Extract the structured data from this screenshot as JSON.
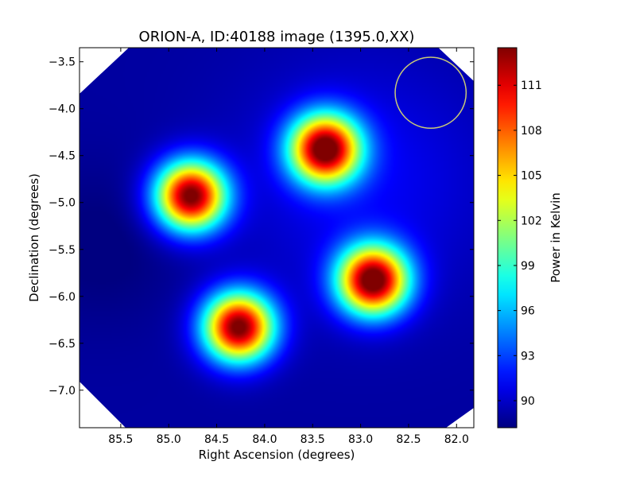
{
  "chart_data": {
    "type": "heatmap",
    "title": "ORION-A, ID:40188 image (1395.0,XX)",
    "xlabel": "Right Ascension (degrees)",
    "ylabel": "Declination (degrees)",
    "colorbar_label": "Power in Kelvin",
    "x_axis_reversed": true,
    "xlim": [
      85.93,
      81.82
    ],
    "ylim": [
      -7.4,
      -3.35
    ],
    "x_ticks": [
      85.5,
      85.0,
      84.5,
      84.0,
      83.5,
      83.0,
      82.5,
      82.0
    ],
    "x_tick_labels": [
      "85.5",
      "85.0",
      "84.5",
      "84.0",
      "83.5",
      "83.0",
      "82.5",
      "82.0"
    ],
    "y_ticks": [
      -3.5,
      -4.0,
      -4.5,
      -5.0,
      -5.5,
      -6.0,
      -6.5,
      -7.0
    ],
    "y_tick_labels": [
      "−3.5",
      "−4.0",
      "−4.5",
      "−5.0",
      "−5.5",
      "−6.0",
      "−6.5",
      "−7.0"
    ],
    "colorbar_range": [
      88.2,
      113.5
    ],
    "colorbar_ticks": [
      90,
      93,
      96,
      99,
      102,
      105,
      108,
      111
    ],
    "colorbar_tick_labels": [
      "90",
      "93",
      "96",
      "99",
      "102",
      "105",
      "108",
      "111"
    ],
    "colormap": "jet",
    "background_level": 89.0,
    "sources": [
      {
        "ra": 84.77,
        "dec": -4.93,
        "peak": 114.0
      },
      {
        "ra": 83.37,
        "dec": -4.43,
        "peak": 114.0
      },
      {
        "ra": 82.87,
        "dec": -5.83,
        "peak": 114.5
      },
      {
        "ra": 84.27,
        "dec": -6.33,
        "peak": 114.0
      }
    ],
    "beam_circle": {
      "ra": 82.27,
      "dec": -3.83,
      "radius_deg": 0.37,
      "color": "#c8c878"
    },
    "colors": {
      "background_fill": "#ffffff",
      "frame": "#000000"
    }
  }
}
